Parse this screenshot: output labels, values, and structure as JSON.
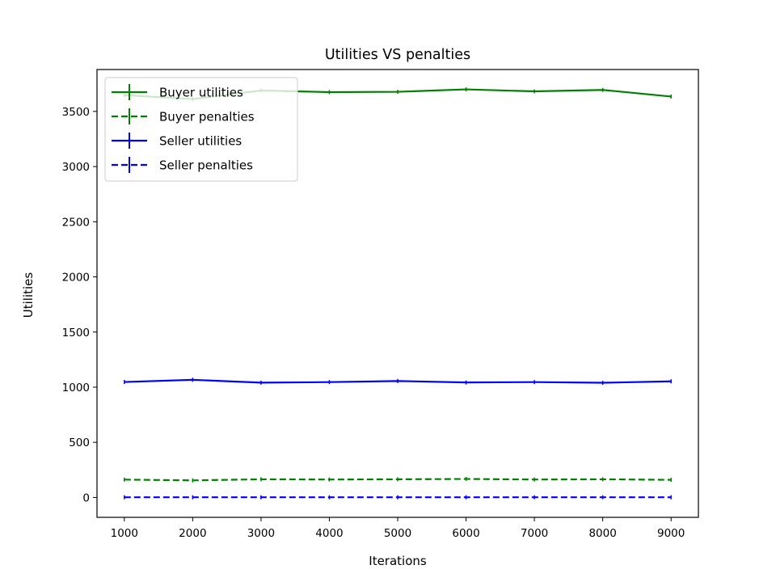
{
  "chart_data": {
    "type": "line",
    "title": "Utilities VS penalties",
    "xlabel": "Iterations",
    "ylabel": "Utilities",
    "x": [
      1000,
      2000,
      3000,
      4000,
      5000,
      6000,
      7000,
      8000,
      9000
    ],
    "xlim": [
      600,
      9400
    ],
    "ylim": [
      -180,
      3880
    ],
    "xticks": [
      1000,
      2000,
      3000,
      4000,
      5000,
      6000,
      7000,
      8000,
      9000
    ],
    "yticks": [
      0,
      500,
      1000,
      1500,
      2000,
      2500,
      3000,
      3500
    ],
    "grid": false,
    "legend_position": "top-left",
    "series": [
      {
        "name": "Buyer utilities",
        "color": "#008000",
        "dash": "solid",
        "values": [
          3648,
          3612,
          3690,
          3675,
          3678,
          3700,
          3682,
          3695,
          3635
        ]
      },
      {
        "name": "Buyer penalties",
        "color": "#008000",
        "dash": "dashed",
        "values": [
          162,
          155,
          165,
          163,
          165,
          168,
          163,
          165,
          160
        ]
      },
      {
        "name": "Seller utilities",
        "color": "#0000ff",
        "dash": "solid",
        "values": [
          1047,
          1067,
          1041,
          1046,
          1056,
          1043,
          1046,
          1040,
          1053
        ]
      },
      {
        "name": "Seller penalties",
        "color": "#0000ff",
        "dash": "dashed",
        "values": [
          2,
          2,
          2,
          2,
          2,
          2,
          2,
          2,
          2
        ]
      }
    ]
  }
}
